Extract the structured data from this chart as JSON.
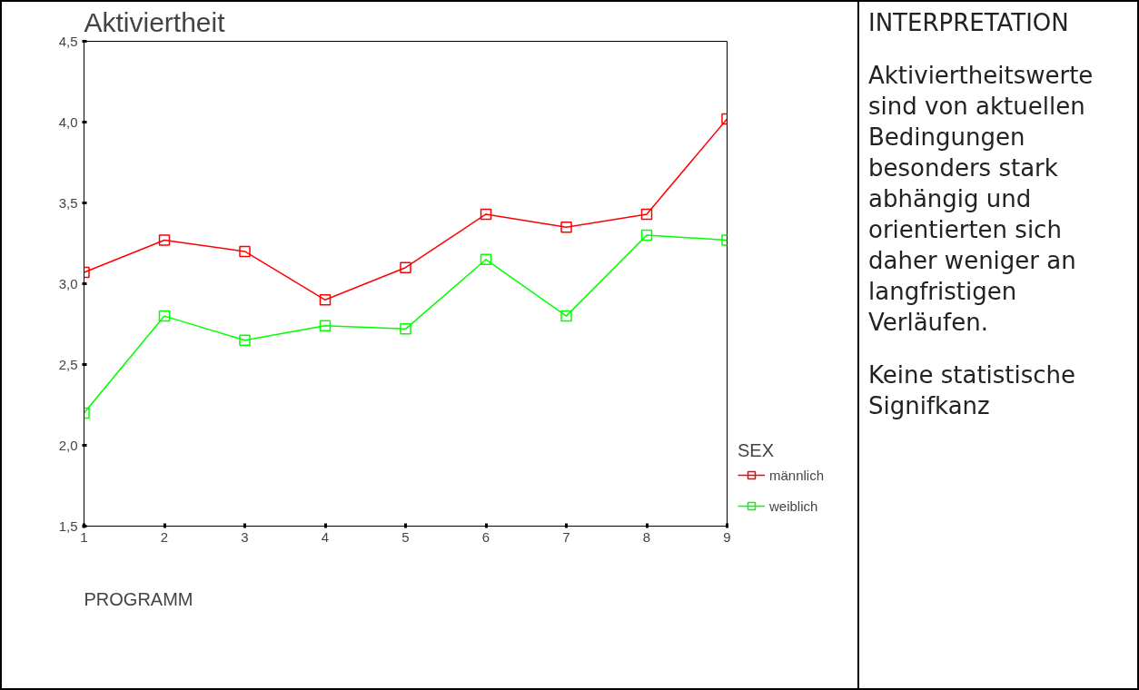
{
  "chart_data": {
    "type": "line",
    "title": "Aktiviertheit",
    "xlabel": "PROGRAMM",
    "legend_title": "SEX",
    "x": [
      1,
      2,
      3,
      4,
      5,
      6,
      7,
      8,
      9
    ],
    "series": [
      {
        "name": "männlich",
        "color": "#ff0000",
        "values": [
          3.07,
          3.27,
          3.2,
          2.9,
          3.1,
          3.43,
          3.35,
          3.43,
          4.02
        ]
      },
      {
        "name": "weiblich",
        "color": "#00ff00",
        "values": [
          2.2,
          2.8,
          2.65,
          2.74,
          2.72,
          3.15,
          2.8,
          3.3,
          3.27
        ]
      }
    ],
    "xlim": [
      1,
      9
    ],
    "xticks": [
      1,
      2,
      3,
      4,
      5,
      6,
      7,
      8,
      9
    ],
    "ylim": [
      1.5,
      4.5
    ],
    "yticks": [
      {
        "value": 1.5,
        "label": "1,5"
      },
      {
        "value": 2.0,
        "label": "2,0"
      },
      {
        "value": 2.5,
        "label": "2,5"
      },
      {
        "value": 3.0,
        "label": "3,0"
      },
      {
        "value": 3.5,
        "label": "3,5"
      },
      {
        "value": 4.0,
        "label": "4,0"
      },
      {
        "value": 4.5,
        "label": "4,5"
      }
    ],
    "grid": false,
    "legend": "right",
    "marker": "square",
    "line_style": "solid",
    "annotations": [
      "INTERPRETATION",
      "Aktiviertheitswerte sind von aktuellen Bedingungen besonders stark abhängig und orientierten sich daher weniger an langfristigen Verläufen.",
      "Keine statistische Signifkanz"
    ]
  }
}
